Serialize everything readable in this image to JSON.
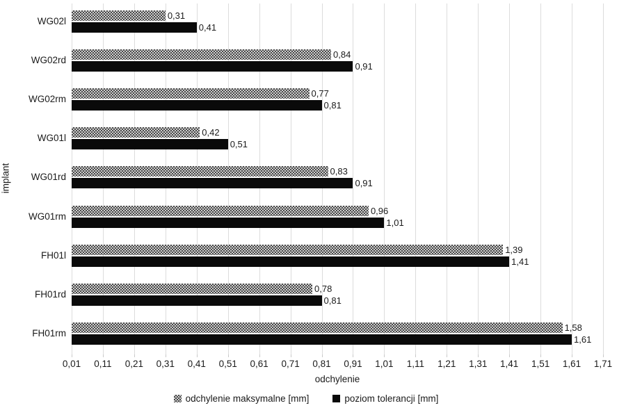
{
  "chart_data": {
    "type": "bar",
    "orientation": "horizontal",
    "title": "",
    "xlabel": "odchylenie",
    "ylabel": "implant",
    "xlim": [
      0.01,
      1.71
    ],
    "xtick_step": 0.1,
    "xticks": [
      "0,01",
      "0,11",
      "0,21",
      "0,31",
      "0,41",
      "0,51",
      "0,61",
      "0,71",
      "0,81",
      "0,91",
      "1,01",
      "1,11",
      "1,21",
      "1,31",
      "1,41",
      "1,51",
      "1,61",
      "1,71"
    ],
    "categories": [
      "WG02l",
      "WG02rd",
      "WG02rm",
      "WG01l",
      "WG01rd",
      "WG01rm",
      "FH01l",
      "FH01rd",
      "FH01rm"
    ],
    "series": [
      {
        "name": "odchylenie maksymalne [mm]",
        "style": "gray-checker-pattern",
        "values": [
          0.31,
          0.84,
          0.77,
          0.42,
          0.83,
          0.96,
          1.39,
          0.78,
          1.58
        ],
        "labels": [
          "0,31",
          "0,84",
          "0,77",
          "0,42",
          "0,83",
          "0,96",
          "1,39",
          "0,78",
          "1,58"
        ]
      },
      {
        "name": "poziom tolerancji [mm]",
        "style": "solid-black",
        "values": [
          0.41,
          0.91,
          0.81,
          0.51,
          0.91,
          1.01,
          1.41,
          0.81,
          1.61
        ],
        "labels": [
          "0,41",
          "0,91",
          "0,81",
          "0,51",
          "0,91",
          "1,01",
          "1,41",
          "0,81",
          "1,61"
        ]
      }
    ],
    "data_labels": true,
    "decimal_separator": ",",
    "grid": "vertical-light",
    "legend_position": "bottom",
    "colors": {
      "pattern_dark": "#474747",
      "pattern_light": "#cfcfcf",
      "black_bar": "#0a0a0a",
      "gridline": "#dcdcdc",
      "tickmark": "#c9c9c9",
      "text": "#1a1a1a",
      "background": "#ffffff"
    }
  }
}
